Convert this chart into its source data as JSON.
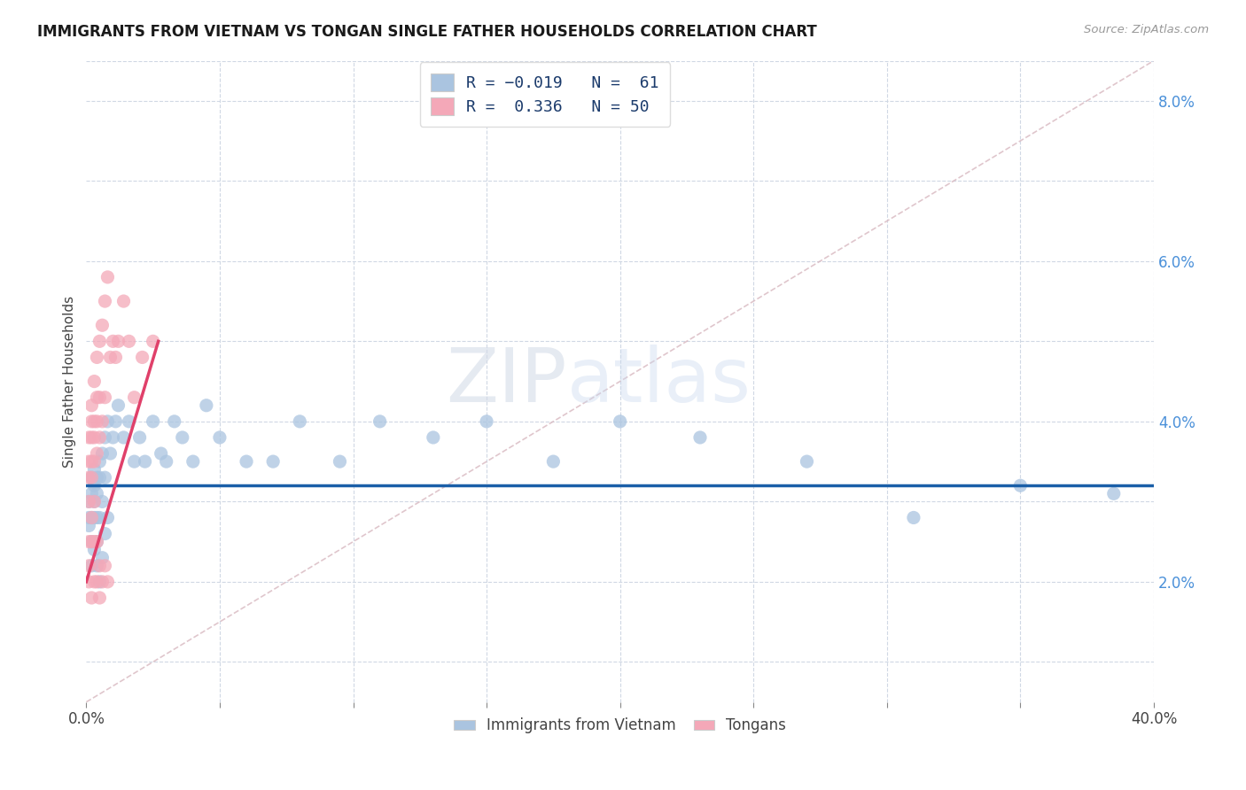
{
  "title": "IMMIGRANTS FROM VIETNAM VS TONGAN SINGLE FATHER HOUSEHOLDS CORRELATION CHART",
  "source": "Source: ZipAtlas.com",
  "ylabel": "Single Father Households",
  "xlim": [
    0.0,
    0.4
  ],
  "ylim": [
    0.005,
    0.085
  ],
  "watermark": "ZIPatlas",
  "blue_color": "#aac4e0",
  "pink_color": "#f4a8b8",
  "blue_line_color": "#1a5fa8",
  "pink_line_color": "#e0406a",
  "diagonal_color": "#c8c8c8",
  "grid_color": "#d0d8e4",
  "vietnam_x": [
    0.001,
    0.001,
    0.001,
    0.002,
    0.002,
    0.002,
    0.002,
    0.002,
    0.003,
    0.003,
    0.003,
    0.003,
    0.004,
    0.004,
    0.004,
    0.004,
    0.005,
    0.005,
    0.005,
    0.006,
    0.006,
    0.007,
    0.007,
    0.008,
    0.008,
    0.009,
    0.01,
    0.011,
    0.012,
    0.014,
    0.016,
    0.018,
    0.02,
    0.022,
    0.025,
    0.028,
    0.03,
    0.033,
    0.036,
    0.04,
    0.045,
    0.05,
    0.06,
    0.07,
    0.08,
    0.095,
    0.11,
    0.13,
    0.15,
    0.175,
    0.2,
    0.23,
    0.27,
    0.31,
    0.35,
    0.385,
    0.003,
    0.004,
    0.005,
    0.006,
    0.007
  ],
  "vietnam_y": [
    0.03,
    0.028,
    0.027,
    0.033,
    0.031,
    0.028,
    0.025,
    0.022,
    0.034,
    0.032,
    0.03,
    0.028,
    0.033,
    0.031,
    0.028,
    0.025,
    0.035,
    0.033,
    0.028,
    0.036,
    0.03,
    0.038,
    0.033,
    0.04,
    0.028,
    0.036,
    0.038,
    0.04,
    0.042,
    0.038,
    0.04,
    0.035,
    0.038,
    0.035,
    0.04,
    0.036,
    0.035,
    0.04,
    0.038,
    0.035,
    0.042,
    0.038,
    0.035,
    0.035,
    0.04,
    0.035,
    0.04,
    0.038,
    0.04,
    0.035,
    0.04,
    0.038,
    0.035,
    0.028,
    0.032,
    0.031,
    0.024,
    0.022,
    0.02,
    0.023,
    0.026
  ],
  "tongan_x": [
    0.001,
    0.001,
    0.001,
    0.001,
    0.001,
    0.002,
    0.002,
    0.002,
    0.002,
    0.002,
    0.002,
    0.003,
    0.003,
    0.003,
    0.003,
    0.003,
    0.004,
    0.004,
    0.004,
    0.004,
    0.005,
    0.005,
    0.005,
    0.006,
    0.006,
    0.007,
    0.007,
    0.008,
    0.009,
    0.01,
    0.011,
    0.012,
    0.014,
    0.016,
    0.018,
    0.021,
    0.025,
    0.001,
    0.001,
    0.002,
    0.002,
    0.003,
    0.003,
    0.004,
    0.004,
    0.005,
    0.005,
    0.006,
    0.007,
    0.008
  ],
  "tongan_y": [
    0.038,
    0.035,
    0.033,
    0.03,
    0.025,
    0.042,
    0.04,
    0.038,
    0.035,
    0.033,
    0.028,
    0.045,
    0.04,
    0.038,
    0.035,
    0.03,
    0.048,
    0.043,
    0.04,
    0.036,
    0.05,
    0.043,
    0.038,
    0.052,
    0.04,
    0.055,
    0.043,
    0.058,
    0.048,
    0.05,
    0.048,
    0.05,
    0.055,
    0.05,
    0.043,
    0.048,
    0.05,
    0.022,
    0.02,
    0.025,
    0.018,
    0.025,
    0.02,
    0.025,
    0.02,
    0.022,
    0.018,
    0.02,
    0.022,
    0.02
  ],
  "vietnam_trend_x": [
    0.0,
    0.4
  ],
  "vietnam_trend_y": [
    0.032,
    0.032
  ],
  "tongan_trend_x0_x": 0.0,
  "tongan_trend_x0_y": 0.02,
  "tongan_trend_x1_x": 0.027,
  "tongan_trend_x1_y": 0.05
}
